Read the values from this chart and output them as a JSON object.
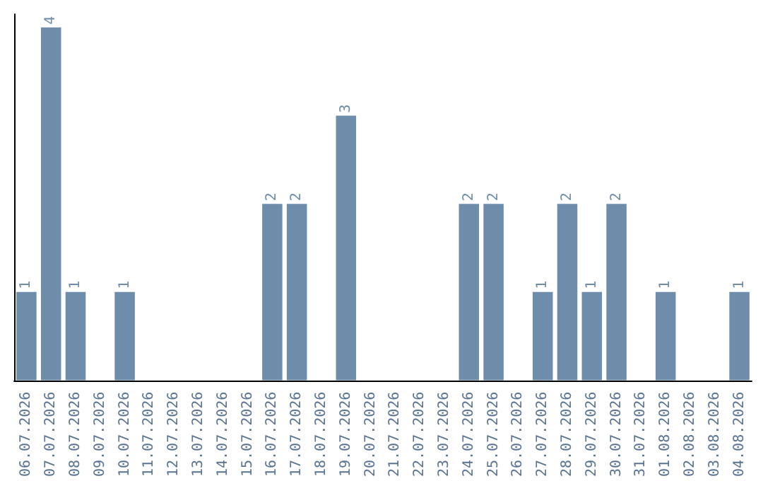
{
  "chart_data": {
    "type": "bar",
    "categories": [
      "06.07.2026",
      "07.07.2026",
      "08.07.2026",
      "09.07.2026",
      "10.07.2026",
      "11.07.2026",
      "12.07.2026",
      "13.07.2026",
      "14.07.2026",
      "15.07.2026",
      "16.07.2026",
      "17.07.2026",
      "18.07.2026",
      "19.07.2026",
      "20.07.2026",
      "21.07.2026",
      "22.07.2026",
      "23.07.2026",
      "24.07.2026",
      "25.07.2026",
      "26.07.2026",
      "27.07.2026",
      "28.07.2026",
      "29.07.2026",
      "30.07.2026",
      "31.07.2026",
      "01.08.2026",
      "02.08.2026",
      "03.08.2026",
      "04.08.2026"
    ],
    "values": [
      1,
      4,
      1,
      0,
      1,
      0,
      0,
      0,
      0,
      0,
      2,
      2,
      0,
      3,
      0,
      0,
      0,
      0,
      2,
      2,
      0,
      1,
      2,
      1,
      2,
      0,
      1,
      0,
      0,
      1
    ],
    "value_labels": [
      "1",
      "4",
      "1",
      null,
      "1",
      null,
      null,
      null,
      null,
      null,
      "2",
      "2",
      null,
      "3",
      null,
      null,
      null,
      null,
      "2",
      "2",
      null,
      "1",
      "2",
      "1",
      "2",
      null,
      "1",
      null,
      null,
      "1"
    ],
    "color": "#6d8dab",
    "ylim": [
      0,
      4.15
    ]
  }
}
